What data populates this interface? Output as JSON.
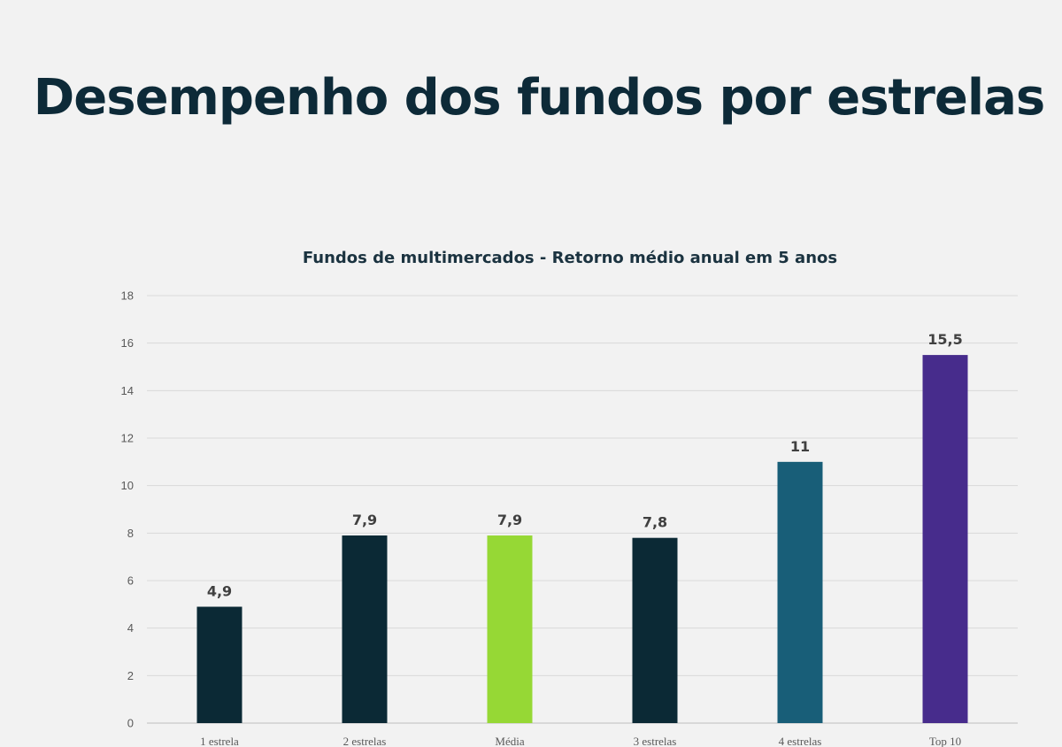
{
  "slide": {
    "title": "Desempenho dos fundos por estrelas",
    "background": "#f2f2f2"
  },
  "chart_data": {
    "type": "bar",
    "title": "Fundos de multimercados - Retorno médio anual em 5 anos",
    "xlabel": "",
    "ylabel": "",
    "ylim": [
      0,
      18
    ],
    "y_ticks": [
      0,
      2,
      4,
      6,
      8,
      10,
      12,
      14,
      16,
      18
    ],
    "grid": true,
    "legend": "none",
    "categories": [
      "1 estrela",
      "2 estrelas",
      "Média",
      "3 estrelas",
      "4 estrelas",
      "Top 10"
    ],
    "values": [
      4.9,
      7.9,
      7.9,
      7.8,
      11,
      15.5
    ],
    "data_labels": [
      "4,9",
      "7,9",
      "7,9",
      "7,8",
      "11",
      "15,5"
    ],
    "colors": [
      "#0b2935",
      "#0b2935",
      "#96d835",
      "#0b2935",
      "#185e78",
      "#472c8c"
    ]
  }
}
